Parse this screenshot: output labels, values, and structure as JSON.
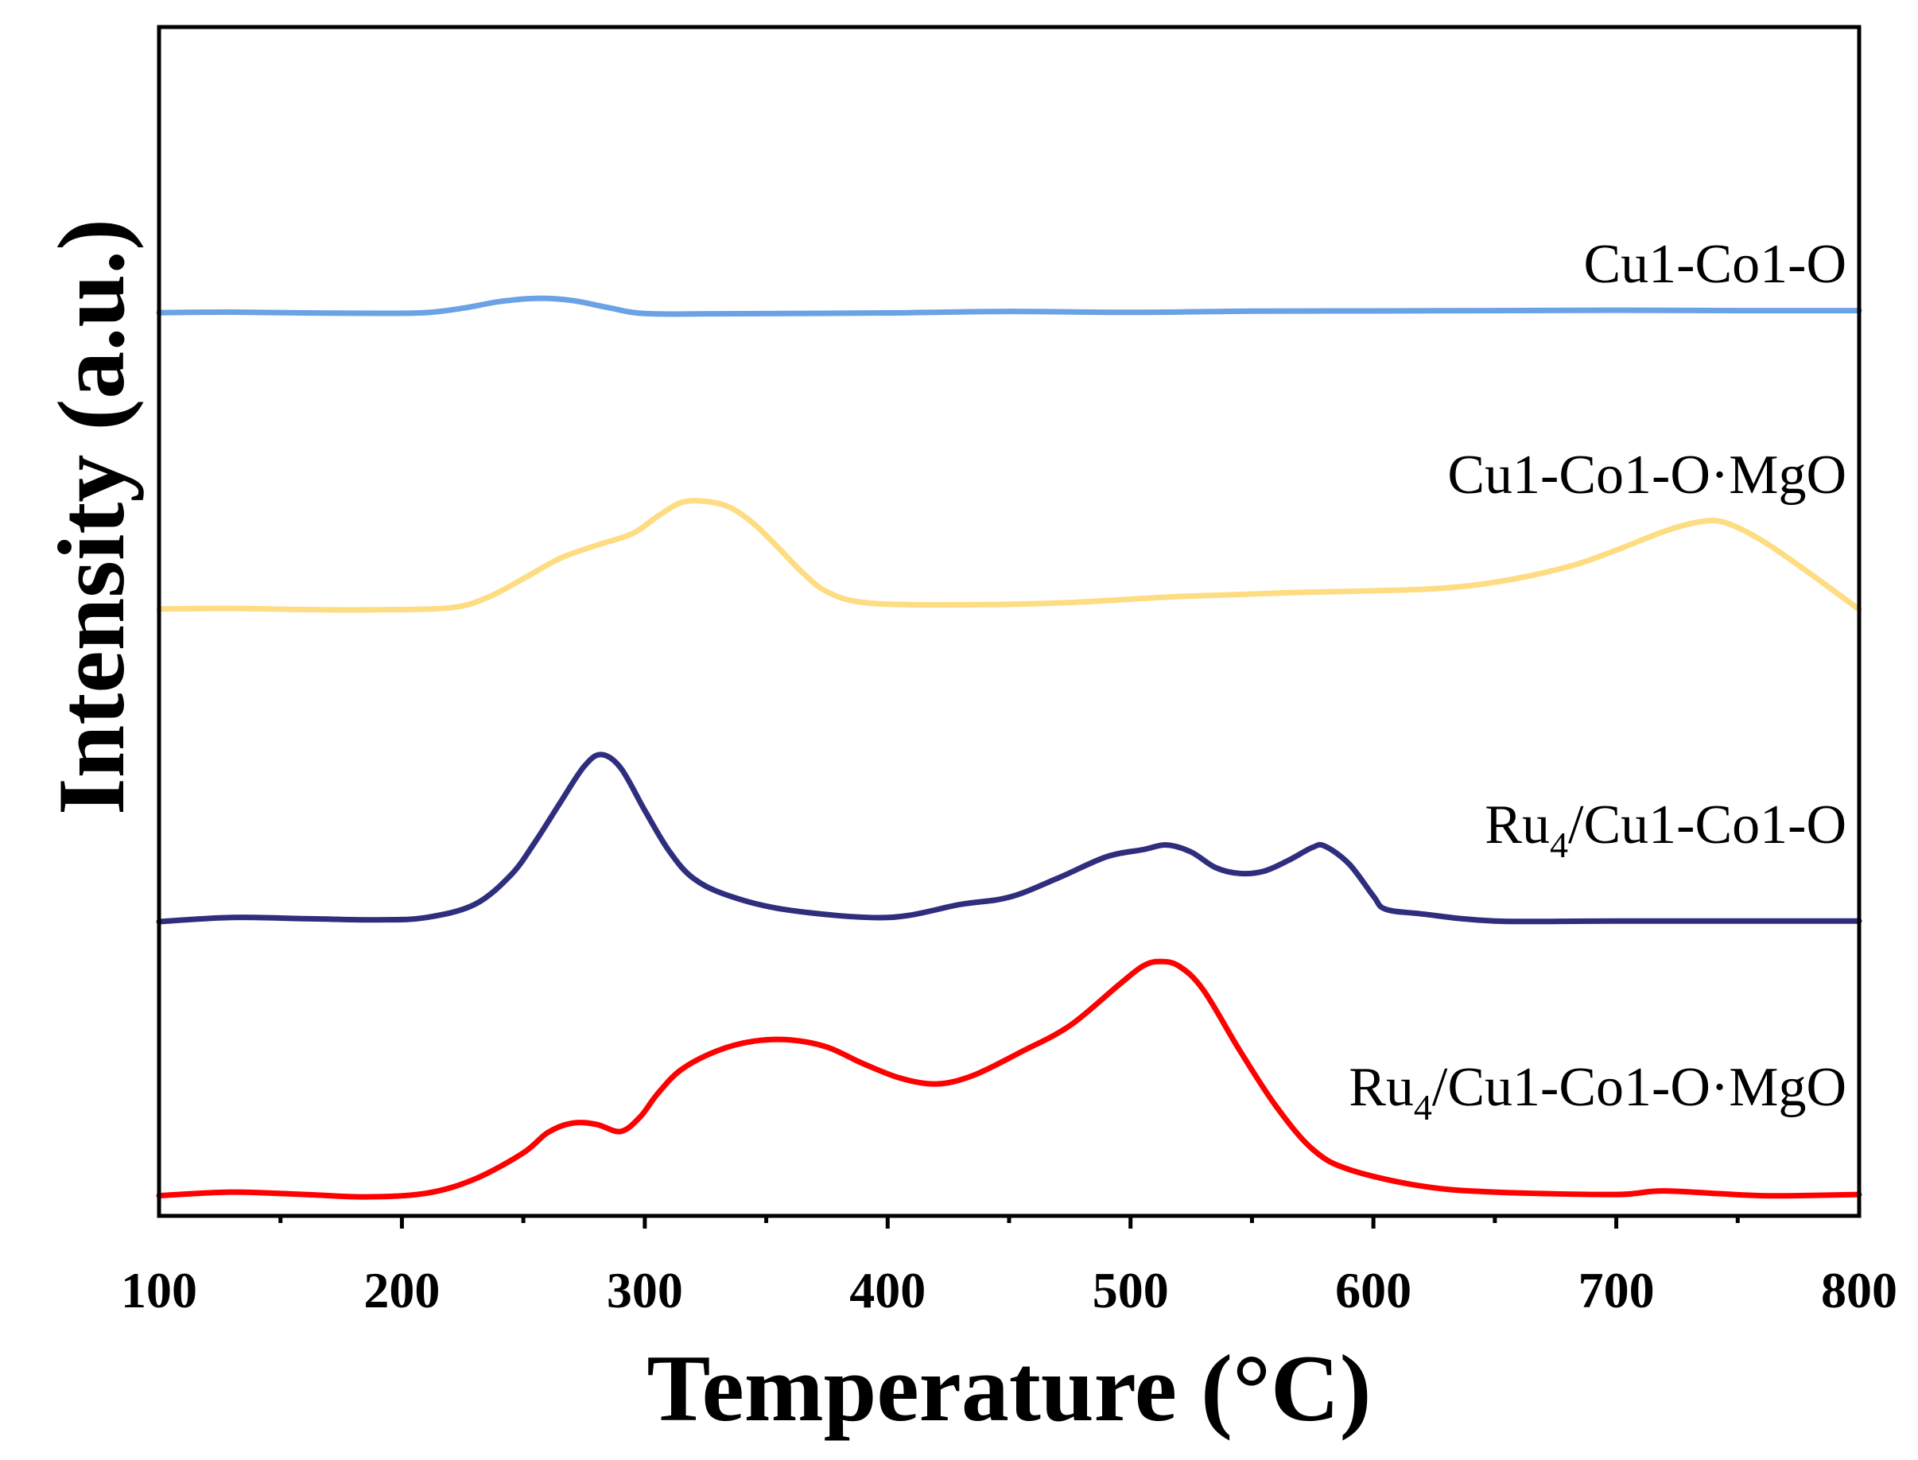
{
  "chart_data": {
    "type": "line",
    "title": "",
    "xlabel": "Temperature (°C)",
    "ylabel": "Intensity (a.u.)",
    "xlim": [
      100,
      800
    ],
    "ylim": [
      0,
      1
    ],
    "x_ticks": [
      100,
      200,
      300,
      400,
      500,
      600,
      700,
      800
    ],
    "x_tick_labels": [
      "100",
      "200",
      "300",
      "400",
      "500",
      "600",
      "700",
      "800"
    ],
    "y_ticks_shown": false,
    "grid": false,
    "legend": "inline labels above each curve, right-aligned",
    "series": [
      {
        "name": "Cu1-Co1-O",
        "label_main": "Cu1-Co1-O",
        "label_sub": "",
        "label_rest": "",
        "color": "#6aa2e6",
        "x": [
          100,
          130,
          160,
          190,
          210,
          225,
          240,
          255,
          270,
          285,
          300,
          330,
          400,
          450,
          500,
          550,
          600,
          650,
          700,
          750,
          800
        ],
        "y": [
          0.7598,
          0.7602,
          0.7595,
          0.7592,
          0.7598,
          0.7635,
          0.769,
          0.7718,
          0.77,
          0.764,
          0.759,
          0.7588,
          0.7595,
          0.7608,
          0.76,
          0.761,
          0.7612,
          0.7615,
          0.7618,
          0.7615,
          0.7615
        ]
      },
      {
        "name": "Cu1-Co1-O·MgO",
        "label_main": "Cu1-Co1-O·MgO",
        "label_sub": "",
        "label_rest": "",
        "color": "#fddc82",
        "x": [
          100,
          130,
          160,
          190,
          220,
          235,
          250,
          265,
          280,
          295,
          305,
          315,
          325,
          335,
          345,
          355,
          365,
          375,
          390,
          420,
          470,
          520,
          570,
          620,
          650,
          680,
          700,
          720,
          735,
          745,
          760,
          780,
          800
        ],
        "y": [
          0.5105,
          0.511,
          0.51,
          0.5098,
          0.5115,
          0.52,
          0.536,
          0.553,
          0.564,
          0.574,
          0.588,
          0.6,
          0.601,
          0.596,
          0.582,
          0.562,
          0.541,
          0.525,
          0.516,
          0.514,
          0.5155,
          0.521,
          0.5245,
          0.527,
          0.533,
          0.546,
          0.56,
          0.576,
          0.584,
          0.583,
          0.568,
          0.54,
          0.51
        ]
      },
      {
        "name": "Ru4/Cu1-Co1-O",
        "label_main": "Ru",
        "label_sub": "4",
        "label_rest": "/Cu1-Co1-O",
        "color": "#2f2e7e",
        "x": [
          100,
          130,
          160,
          190,
          210,
          230,
          245,
          255,
          265,
          275,
          282,
          290,
          300,
          310,
          320,
          335,
          360,
          400,
          430,
          450,
          470,
          490,
          505,
          515,
          525,
          535,
          545,
          555,
          565,
          575,
          580,
          590,
          600,
          605,
          620,
          650,
          700,
          800
        ],
        "y": [
          0.2475,
          0.251,
          0.25,
          0.249,
          0.251,
          0.262,
          0.287,
          0.315,
          0.347,
          0.378,
          0.388,
          0.377,
          0.341,
          0.307,
          0.284,
          0.269,
          0.257,
          0.251,
          0.262,
          0.268,
          0.284,
          0.302,
          0.308,
          0.312,
          0.306,
          0.293,
          0.288,
          0.29,
          0.299,
          0.31,
          0.311,
          0.296,
          0.269,
          0.258,
          0.254,
          0.248,
          0.248,
          0.248
        ]
      },
      {
        "name": "Ru4/Cu1-Co1-O·MgO",
        "label_main": "Ru",
        "label_sub": "4",
        "label_rest": "/Cu1-Co1-O·MgO",
        "color": "#ff0000",
        "x": [
          100,
          130,
          160,
          185,
          210,
          230,
          250,
          260,
          270,
          280,
          290,
          298,
          305,
          315,
          330,
          345,
          360,
          375,
          390,
          405,
          420,
          435,
          455,
          475,
          495,
          505,
          512,
          520,
          530,
          545,
          560,
          575,
          590,
          620,
          650,
          700,
          720,
          760,
          800
        ],
        "y": [
          0.017,
          0.02,
          0.018,
          0.016,
          0.019,
          0.031,
          0.053,
          0.07,
          0.078,
          0.077,
          0.071,
          0.083,
          0.102,
          0.123,
          0.139,
          0.147,
          0.148,
          0.142,
          0.128,
          0.116,
          0.111,
          0.118,
          0.138,
          0.16,
          0.194,
          0.21,
          0.214,
          0.21,
          0.19,
          0.139,
          0.092,
          0.056,
          0.039,
          0.025,
          0.02,
          0.018,
          0.021,
          0.017,
          0.018
        ]
      }
    ]
  }
}
